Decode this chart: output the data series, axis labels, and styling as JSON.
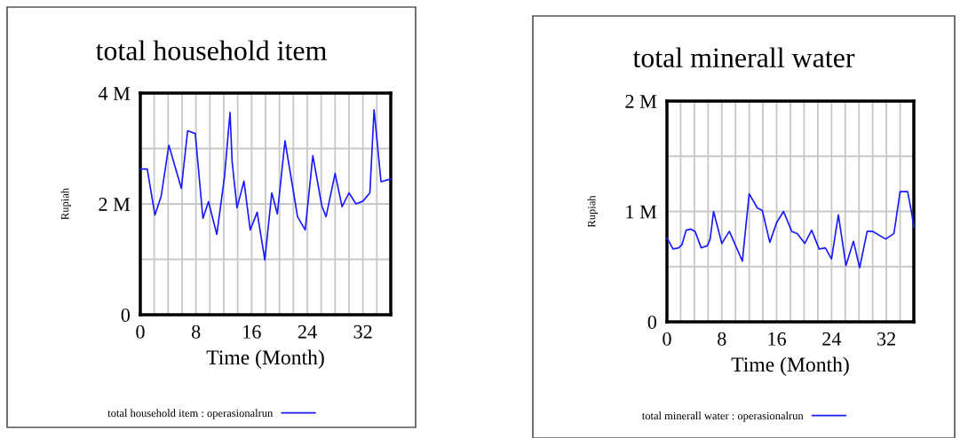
{
  "chart_data": [
    {
      "type": "line",
      "title": "total household item",
      "xlabel": "Time (Month)",
      "ylabel": "Rupiah",
      "xlim": [
        0,
        36
      ],
      "ylim": [
        0,
        4000000
      ],
      "xticks": [
        0,
        {
          "value": 2,
          "label": null
        },
        {
          "value": 4,
          "label": null
        },
        {
          "value": 6,
          "label": null
        },
        8,
        {
          "value": 10,
          "label": null
        },
        {
          "value": 12,
          "label": null
        },
        {
          "value": 14,
          "label": null
        },
        16,
        {
          "value": 18,
          "label": null
        },
        {
          "value": 20,
          "label": null
        },
        {
          "value": 22,
          "label": null
        },
        24,
        {
          "value": 26,
          "label": null
        },
        {
          "value": 28,
          "label": null
        },
        {
          "value": 30,
          "label": null
        },
        32,
        {
          "value": 34,
          "label": null
        },
        {
          "value": 36,
          "label": null
        }
      ],
      "yticks": [
        0,
        {
          "value": 1000000,
          "label": null
        },
        {
          "value": 2000000,
          "label": "2 M"
        },
        {
          "value": 3000000,
          "label": null
        },
        {
          "value": 4000000,
          "label": "4 M"
        }
      ],
      "grid": true,
      "legend": "bottom",
      "line_style": "solid",
      "marker": "none",
      "series": [
        {
          "name": "total household item : operasionalrun",
          "color": "#1a1aff",
          "x": [
            0,
            1,
            2.1,
            3,
            4.1,
            5.9,
            6.8,
            7.9,
            9,
            9.8,
            11,
            12.1,
            12.9,
            13.2,
            13.9,
            14.9,
            15.8,
            16.8,
            17.9,
            18.9,
            19.7,
            20.8,
            22.6,
            23.7,
            24.8,
            26.1,
            26.7,
            28,
            29,
            30,
            31,
            32,
            33,
            33.6,
            34.6,
            36
          ],
          "values": [
            2630000,
            2630000,
            1800000,
            2140000,
            3060000,
            2280000,
            3320000,
            3270000,
            1740000,
            2040000,
            1450000,
            2490000,
            3650000,
            2760000,
            1930000,
            2410000,
            1530000,
            1850000,
            990000,
            2200000,
            1820000,
            3140000,
            1770000,
            1530000,
            2870000,
            1960000,
            1770000,
            2550000,
            1950000,
            2200000,
            2000000,
            2050000,
            2200000,
            3700000,
            2400000,
            2450000
          ]
        }
      ]
    },
    {
      "type": "line",
      "title": "total minerall water",
      "xlabel": "Time (Month)",
      "ylabel": "Rupiah",
      "xlim": [
        0,
        36
      ],
      "ylim": [
        0,
        2000000
      ],
      "xticks": [
        0,
        {
          "value": 2,
          "label": null
        },
        {
          "value": 4,
          "label": null
        },
        {
          "value": 6,
          "label": null
        },
        8,
        {
          "value": 10,
          "label": null
        },
        {
          "value": 12,
          "label": null
        },
        {
          "value": 14,
          "label": null
        },
        16,
        {
          "value": 18,
          "label": null
        },
        {
          "value": 20,
          "label": null
        },
        {
          "value": 22,
          "label": null
        },
        24,
        {
          "value": 26,
          "label": null
        },
        {
          "value": 28,
          "label": null
        },
        {
          "value": 30,
          "label": null
        },
        32,
        {
          "value": 34,
          "label": null
        },
        {
          "value": 36,
          "label": null
        }
      ],
      "yticks": [
        0,
        {
          "value": 500000,
          "label": null
        },
        {
          "value": 1000000,
          "label": "1 M"
        },
        {
          "value": 1500000,
          "label": null
        },
        {
          "value": 2000000,
          "label": "2 M"
        }
      ],
      "grid": true,
      "legend": "bottom",
      "line_style": "solid",
      "marker": "none",
      "series": [
        {
          "name": "total minerall water : operasionalrun",
          "color": "#1a1aff",
          "x": [
            0,
            0.9,
            1.7,
            2.2,
            2.8,
            3.5,
            4.1,
            5,
            5.9,
            6.3,
            6.8,
            8,
            9.1,
            11,
            11.5,
            12,
            13.2,
            13.9,
            15,
            16,
            17,
            18.2,
            19,
            20.1,
            21.1,
            22.2,
            23.1,
            24,
            25,
            26.1,
            27.2,
            28.1,
            29.2,
            30,
            31.9,
            33.1,
            34,
            35.1,
            35.7,
            36
          ],
          "values": [
            760000,
            660000,
            670000,
            700000,
            830000,
            840000,
            820000,
            670000,
            690000,
            750000,
            1000000,
            710000,
            820000,
            550000,
            860000,
            1160000,
            1030000,
            1010000,
            720000,
            900000,
            1000000,
            820000,
            800000,
            710000,
            830000,
            660000,
            670000,
            570000,
            970000,
            510000,
            730000,
            490000,
            820000,
            820000,
            750000,
            800000,
            1180000,
            1180000,
            980000,
            860000
          ]
        }
      ]
    }
  ]
}
